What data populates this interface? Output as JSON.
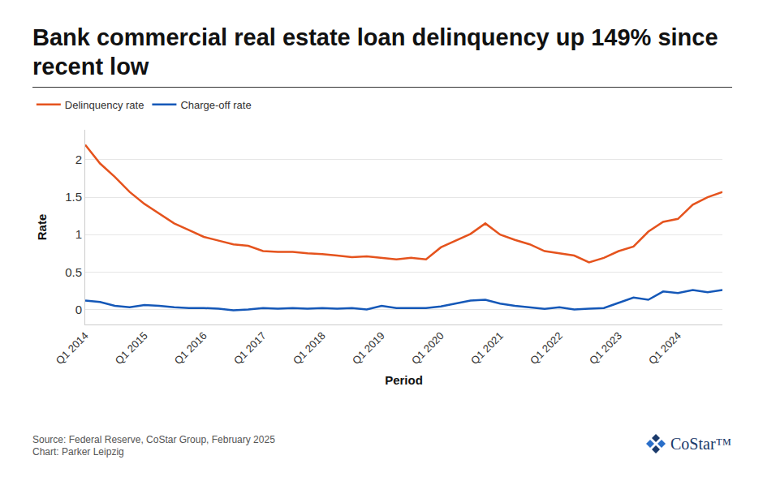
{
  "chart_data": {
    "type": "line",
    "title": "Bank commercial real estate loan delinquency up 149% since recent low",
    "xlabel": "Period",
    "ylabel": "Rate",
    "source": "Source: Federal Reserve, CoStar Group, February 2025",
    "credit": "Chart: Parker Leipzig",
    "logo": "CoStar™",
    "categories": [
      "Q1 2014",
      null,
      null,
      null,
      "Q1 2015",
      null,
      null,
      null,
      "Q1 2016",
      null,
      null,
      null,
      "Q1 2017",
      null,
      null,
      null,
      "Q1 2018",
      null,
      null,
      null,
      "Q1 2019",
      null,
      null,
      null,
      "Q1 2020",
      null,
      null,
      null,
      "Q1 2021",
      null,
      null,
      null,
      "Q1 2022",
      null,
      null,
      null,
      "Q1 2023",
      null,
      null,
      null,
      "Q1 2024",
      null,
      null,
      null
    ],
    "series": [
      {
        "name": "Delinquency rate",
        "color": "#e5531d",
        "values": [
          2.2,
          1.95,
          1.77,
          1.57,
          1.41,
          1.28,
          1.15,
          1.06,
          0.97,
          0.92,
          0.87,
          0.85,
          0.78,
          0.77,
          0.77,
          0.75,
          0.74,
          0.72,
          0.7,
          0.71,
          0.69,
          0.67,
          0.69,
          0.67,
          0.83,
          0.92,
          1.01,
          1.15,
          1.0,
          0.93,
          0.87,
          0.78,
          0.75,
          0.72,
          0.63,
          0.69,
          0.78,
          0.84,
          1.04,
          1.17,
          1.21,
          1.4,
          1.5,
          1.57
        ]
      },
      {
        "name": "Charge-off rate",
        "color": "#1558b8",
        "values": [
          0.12,
          0.1,
          0.05,
          0.03,
          0.06,
          0.05,
          0.03,
          0.02,
          0.02,
          0.01,
          -0.01,
          0.0,
          0.02,
          0.01,
          0.02,
          0.01,
          0.02,
          0.01,
          0.02,
          0.0,
          0.05,
          0.02,
          0.02,
          0.02,
          0.04,
          0.08,
          0.12,
          0.13,
          0.08,
          0.05,
          0.03,
          0.01,
          0.03,
          0.0,
          0.01,
          0.02,
          0.09,
          0.16,
          0.13,
          0.24,
          0.22,
          0.26,
          0.23,
          0.26
        ]
      }
    ],
    "ylim": [
      -0.2,
      2.4
    ],
    "yticks": [
      0,
      0.5,
      1,
      1.5,
      2
    ],
    "grid": true,
    "legend": "top left"
  }
}
